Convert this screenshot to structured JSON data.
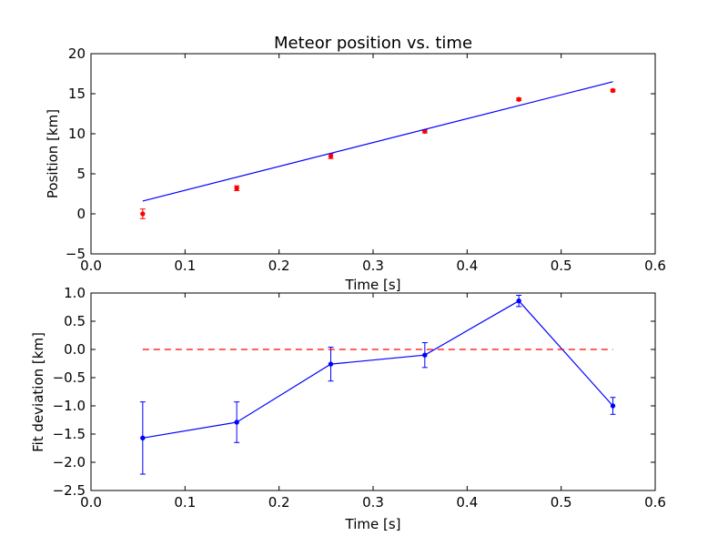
{
  "chart_data": [
    {
      "type": "scatter",
      "title": "Meteor position vs. time",
      "xlabel": "Time [s]",
      "ylabel": "Position [km]",
      "xlim": [
        0.0,
        0.6
      ],
      "ylim": [
        -5,
        20
      ],
      "x_ticks": [
        "0.0",
        "0.1",
        "0.2",
        "0.3",
        "0.4",
        "0.5",
        "0.6"
      ],
      "y_ticks": [
        "−5",
        "0",
        "5",
        "10",
        "15",
        "20"
      ],
      "grid": false,
      "series": [
        {
          "kind": "errorbar-points",
          "color": "#ff0000",
          "x": [
            0.055,
            0.155,
            0.255,
            0.355,
            0.455,
            0.555
          ],
          "y": [
            0.0,
            3.2,
            7.2,
            10.3,
            14.3,
            15.4
          ],
          "yerr": [
            0.6,
            0.3,
            0.3,
            0.2,
            0.15,
            0.15
          ]
        },
        {
          "kind": "fit-line",
          "color": "#0000ff",
          "x": [
            0.055,
            0.555
          ],
          "y": [
            1.6,
            16.5
          ]
        }
      ]
    },
    {
      "type": "line",
      "title": "",
      "xlabel": "Time [s]",
      "ylabel": "Fit deviation [km]",
      "xlim": [
        0.0,
        0.6
      ],
      "ylim": [
        -2.5,
        1.0
      ],
      "x_ticks": [
        "0.0",
        "0.1",
        "0.2",
        "0.3",
        "0.4",
        "0.5",
        "0.6"
      ],
      "y_ticks": [
        "−2.5",
        "−2.0",
        "−1.5",
        "−1.0",
        "−0.5",
        "0.0",
        "0.5",
        "1.0"
      ],
      "grid": false,
      "series": [
        {
          "kind": "errorbar-line",
          "color": "#0000ff",
          "x": [
            0.055,
            0.155,
            0.255,
            0.355,
            0.455,
            0.555
          ],
          "y": [
            -1.57,
            -1.29,
            -0.26,
            -0.1,
            0.86,
            -1.0
          ],
          "yerr": [
            0.64,
            0.36,
            0.3,
            0.22,
            0.1,
            0.15
          ]
        },
        {
          "kind": "zero-line",
          "color": "#ff0000",
          "dashed": true,
          "x": [
            0.055,
            0.555
          ],
          "y": [
            0.0,
            0.0
          ]
        }
      ]
    }
  ]
}
